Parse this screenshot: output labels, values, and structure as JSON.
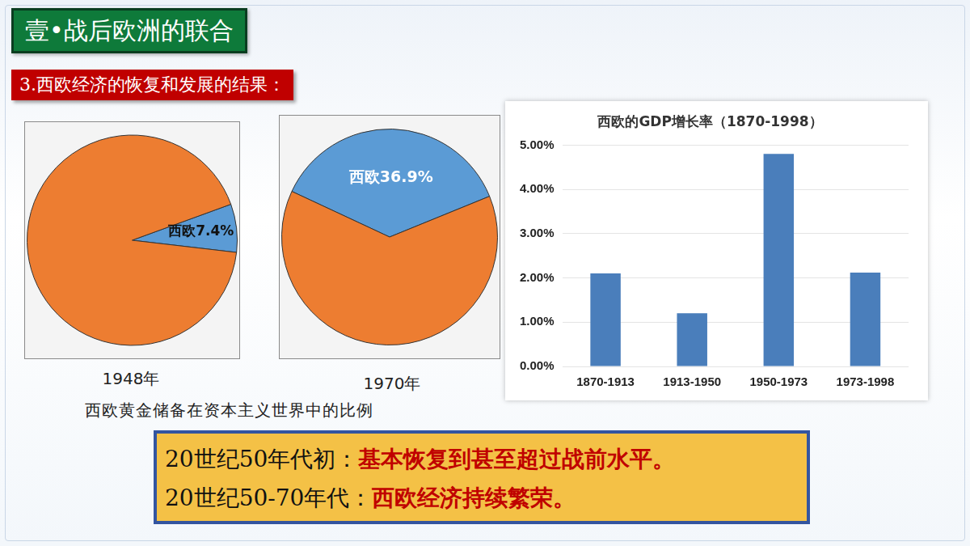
{
  "page": {
    "header": "壹•战后欧洲的联合",
    "subheader": "3.西欧经济的恢复和发展的结果：",
    "caption": "西欧黄金储备在资本主义世界中的比例",
    "summary": [
      {
        "period": "20世纪50年代初：",
        "text": "基本恢复到甚至超过战前水平。"
      },
      {
        "period": "20世纪50-70年代：",
        "text": "西欧经济持续繁荣。"
      }
    ]
  },
  "chart_data": [
    {
      "type": "pie",
      "title": "1948年",
      "categories": [
        "西欧",
        null
      ],
      "values": [
        7.4,
        92.6
      ],
      "value_labels": [
        "西欧7.4%",
        null
      ],
      "colors": [
        "#5b9bd5",
        "#ed7d31"
      ],
      "data_labels": true
    },
    {
      "type": "pie",
      "title": "1970年",
      "categories": [
        "西欧",
        null
      ],
      "values": [
        36.9,
        63.1
      ],
      "value_labels": [
        "西欧36.9%",
        null
      ],
      "colors": [
        "#5b9bd5",
        "#ed7d31"
      ],
      "data_labels": true
    },
    {
      "type": "bar",
      "title": "西欧的GDP增长率（1870-1998）",
      "categories": [
        "1870-1913",
        "1913-1950",
        "1950-1973",
        "1973-1998"
      ],
      "values": [
        2.1,
        1.2,
        4.8,
        2.12
      ],
      "color": "#4a7ebb",
      "ylim": [
        0,
        5
      ],
      "yticks": [
        {
          "value": 0,
          "label": "0.00%"
        },
        {
          "value": 1,
          "label": "1.00%"
        },
        {
          "value": 2,
          "label": "2.00%"
        },
        {
          "value": 3,
          "label": "3.00%"
        },
        {
          "value": 4,
          "label": "4.00%"
        },
        {
          "value": 5,
          "label": "5.00%"
        }
      ],
      "grid": true
    }
  ]
}
